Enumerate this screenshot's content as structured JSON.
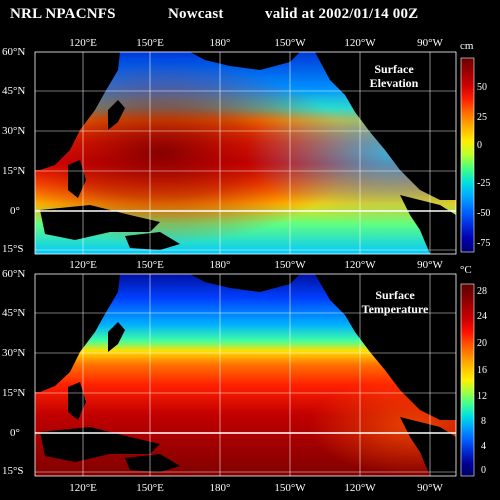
{
  "header": {
    "source": "NRL NPACNFS",
    "mode": "Nowcast",
    "valid": "valid at 2002/01/14 00Z"
  },
  "lon_labels": [
    "120°E",
    "150°E",
    "180°",
    "150°W",
    "120°W",
    "90°W"
  ],
  "lat_labels": [
    "60°N",
    "45°N",
    "30°N",
    "15°N",
    "0°",
    "15°S"
  ],
  "panels": [
    {
      "name": "elevation",
      "label_line1": "Surface",
      "label_line2": "Elevation",
      "unit": "cm",
      "ticks": [
        "50",
        "25",
        "0",
        "-25",
        "-50",
        "-75"
      ],
      "colorbar": [
        "#6b0000",
        "#9a0000",
        "#cf0000",
        "#ff2000",
        "#ff7000",
        "#ffb000",
        "#ffee00",
        "#b8ff30",
        "#40ff80",
        "#00e0e0",
        "#00a8ff",
        "#0068ff",
        "#0030e0",
        "#0000b0",
        "#000070"
      ]
    },
    {
      "name": "temperature",
      "label_line1": "Surface",
      "label_line2": "Temperature",
      "unit": "°C",
      "ticks": [
        "28",
        "24",
        "20",
        "16",
        "12",
        "8",
        "4",
        "0"
      ],
      "colorbar": [
        "#5a0000",
        "#800000",
        "#a80000",
        "#d00000",
        "#ff1000",
        "#ff5000",
        "#ff8c00",
        "#ffc000",
        "#fff000",
        "#a0ff40",
        "#40ff90",
        "#00e0e0",
        "#00a0ff",
        "#0060ff",
        "#0028d0",
        "#000090",
        "#000060"
      ]
    }
  ]
}
